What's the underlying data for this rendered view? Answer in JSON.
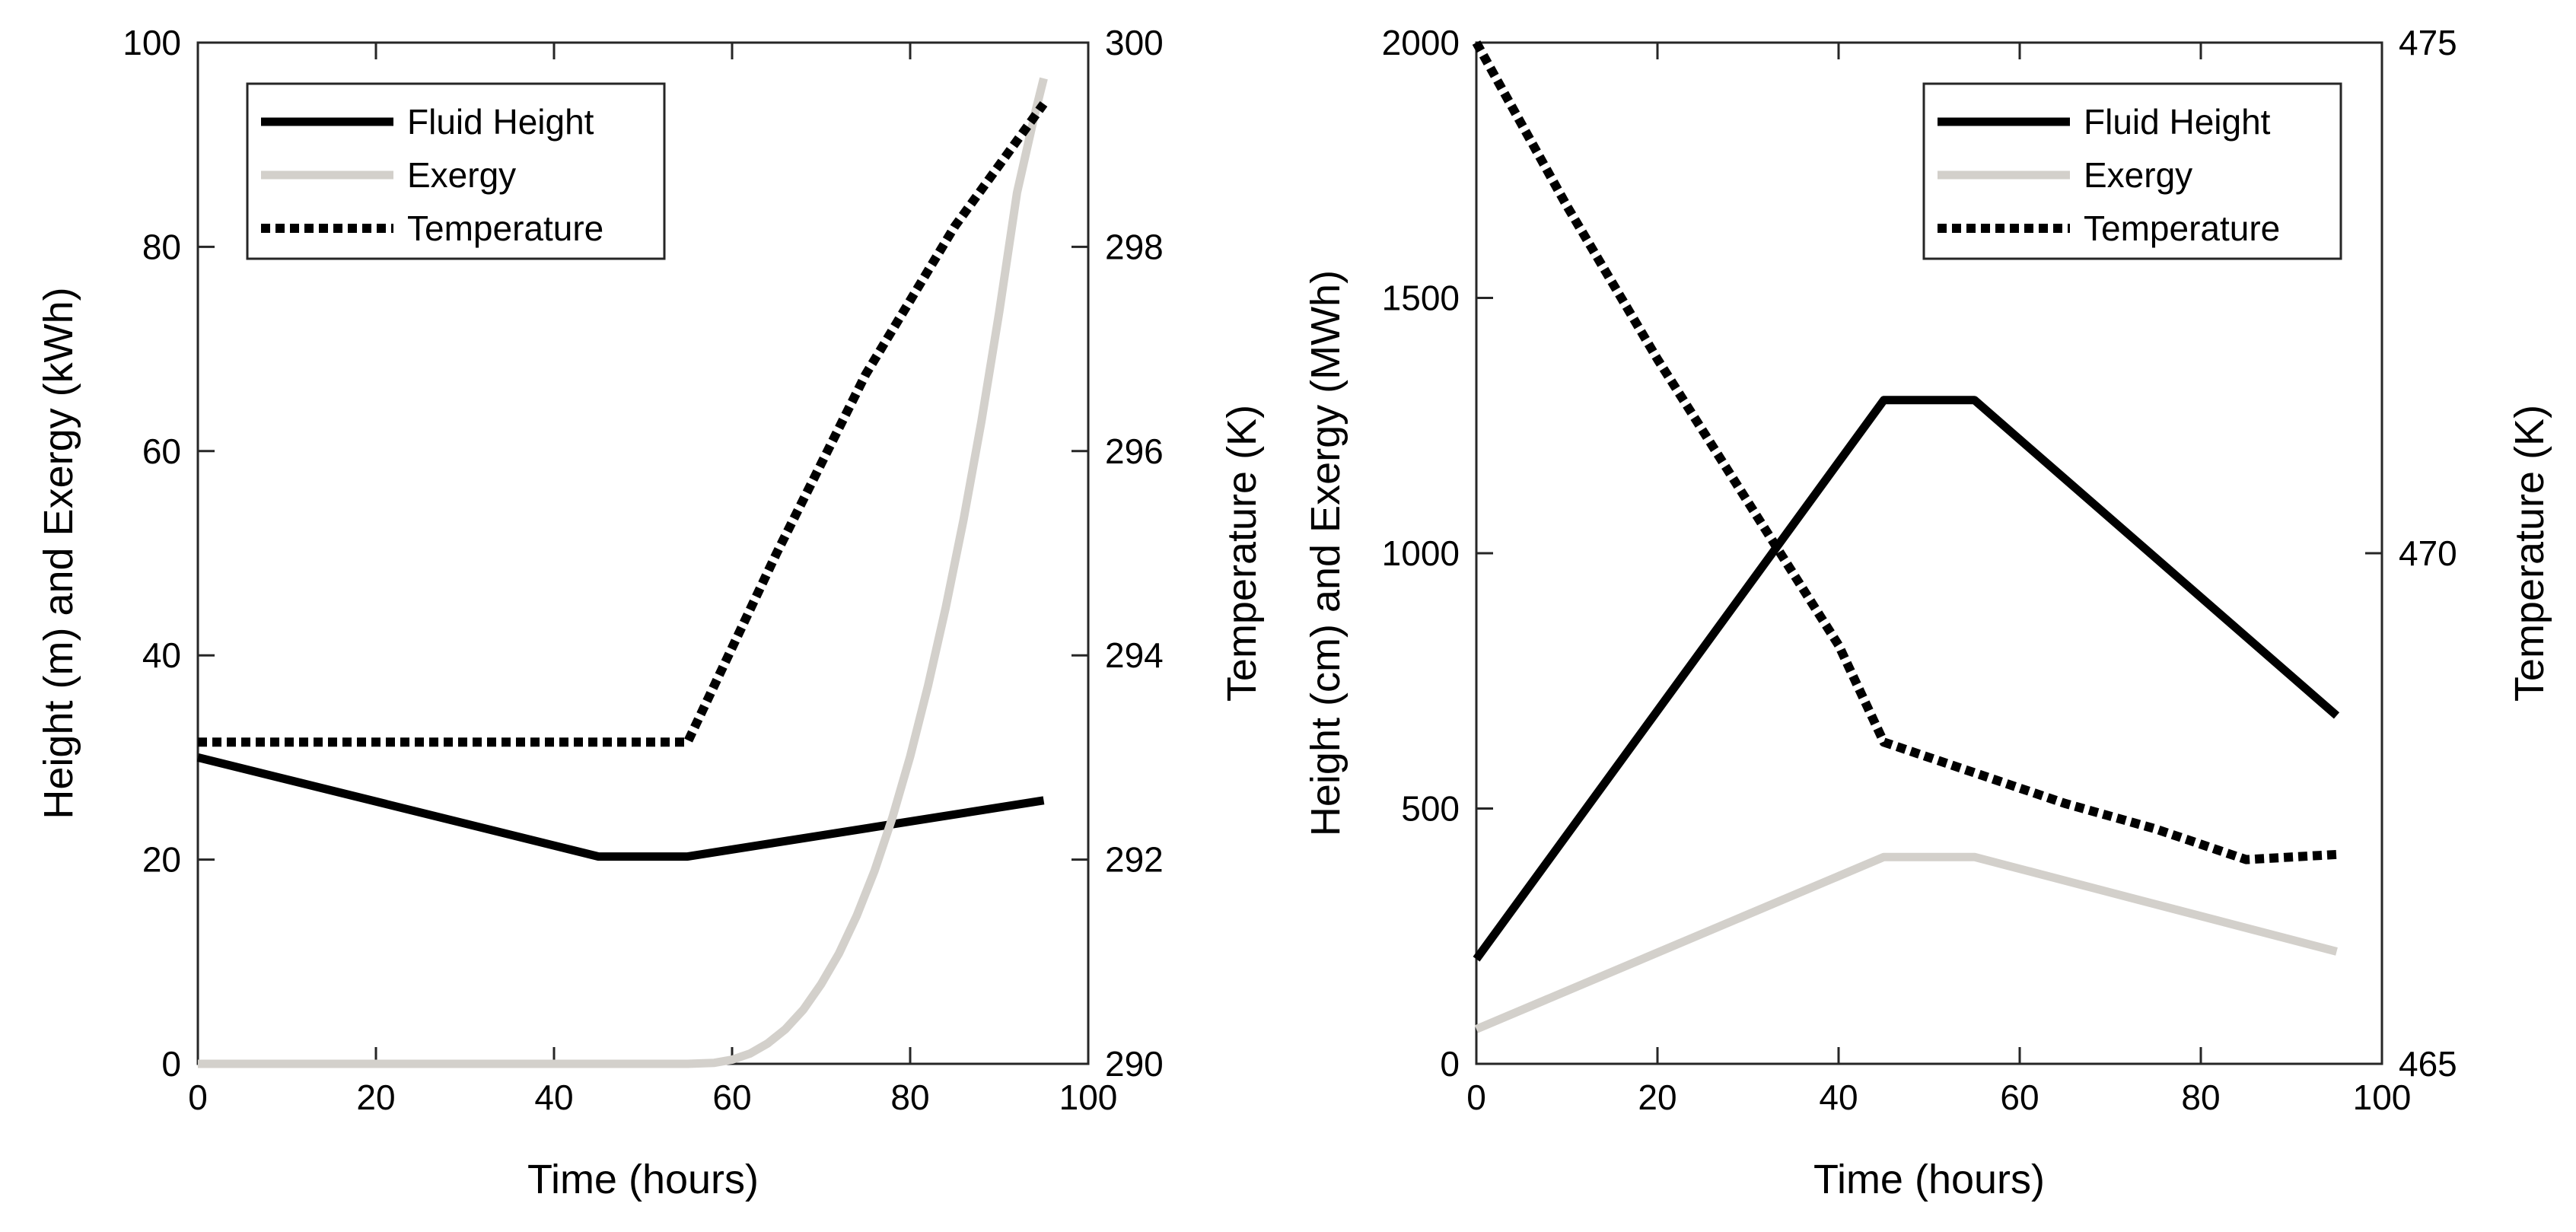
{
  "chart_data": [
    {
      "type": "line",
      "title": "",
      "xlabel": "Time (hours)",
      "ylabel": "Height (m) and Exergy (kWh)",
      "y2label": "Temperature (K)",
      "xlim": [
        0,
        100
      ],
      "ylim": [
        0,
        100
      ],
      "y2lim": [
        290,
        300
      ],
      "xticks": [
        0,
        20,
        40,
        60,
        80,
        100
      ],
      "yticks": [
        0,
        20,
        40,
        60,
        80,
        100
      ],
      "y2ticks": [
        290,
        292,
        294,
        296,
        298,
        300
      ],
      "grid": false,
      "legend_position": "top-left",
      "series": [
        {
          "name": "Fluid Height",
          "axis": "left",
          "color": "#000000",
          "style": "solid",
          "x": [
            0,
            45,
            55,
            95
          ],
          "y": [
            30,
            20.3,
            20.3,
            25.8
          ]
        },
        {
          "name": "Exergy",
          "axis": "left",
          "color": "#d3d0cb",
          "style": "solid",
          "x": [
            0,
            55,
            58,
            60,
            62,
            64,
            66,
            68,
            70,
            72,
            74,
            76,
            78,
            80,
            82,
            84,
            86,
            88,
            90,
            92,
            94,
            95
          ],
          "y": [
            0,
            0,
            0.1,
            0.4,
            1,
            2,
            3.4,
            5.3,
            7.8,
            10.8,
            14.5,
            18.9,
            24.1,
            30.1,
            37,
            44.7,
            53.3,
            62.9,
            73.6,
            85.3,
            93,
            96.5
          ]
        },
        {
          "name": "Temperature",
          "axis": "right",
          "color": "#000000",
          "style": "dotted",
          "x": [
            0,
            55,
            65,
            75,
            85,
            95
          ],
          "y": [
            293.15,
            293.15,
            295,
            296.75,
            298.2,
            299.4
          ]
        }
      ]
    },
    {
      "type": "line",
      "title": "",
      "xlabel": "Time (hours)",
      "ylabel": "Height (cm) and Exergy (MWh)",
      "y2label": "Temperature (K)",
      "xlim": [
        0,
        100
      ],
      "ylim": [
        0,
        2000
      ],
      "y2lim": [
        465,
        475
      ],
      "xticks": [
        0,
        20,
        40,
        60,
        80,
        100
      ],
      "yticks": [
        0,
        500,
        1000,
        1500,
        2000
      ],
      "y2ticks": [
        465,
        470,
        475
      ],
      "grid": false,
      "legend_position": "top-right",
      "series": [
        {
          "name": "Fluid Height",
          "axis": "left",
          "color": "#000000",
          "style": "solid",
          "x": [
            0,
            45,
            55,
            95
          ],
          "y": [
            205,
            1300,
            1300,
            682
          ]
        },
        {
          "name": "Exergy",
          "axis": "left",
          "color": "#d3d0cb",
          "style": "solid",
          "x": [
            0,
            45,
            55,
            95
          ],
          "y": [
            68,
            405,
            405,
            220
          ]
        },
        {
          "name": "Temperature",
          "axis": "right",
          "color": "#000000",
          "style": "dotted",
          "x": [
            0,
            10,
            20,
            30,
            40,
            45,
            55,
            65,
            75,
            85,
            95
          ],
          "y": [
            475,
            473.4,
            471.9,
            470.5,
            469.1,
            468.15,
            467.85,
            467.55,
            467.3,
            467.0,
            467.05
          ]
        }
      ]
    }
  ]
}
